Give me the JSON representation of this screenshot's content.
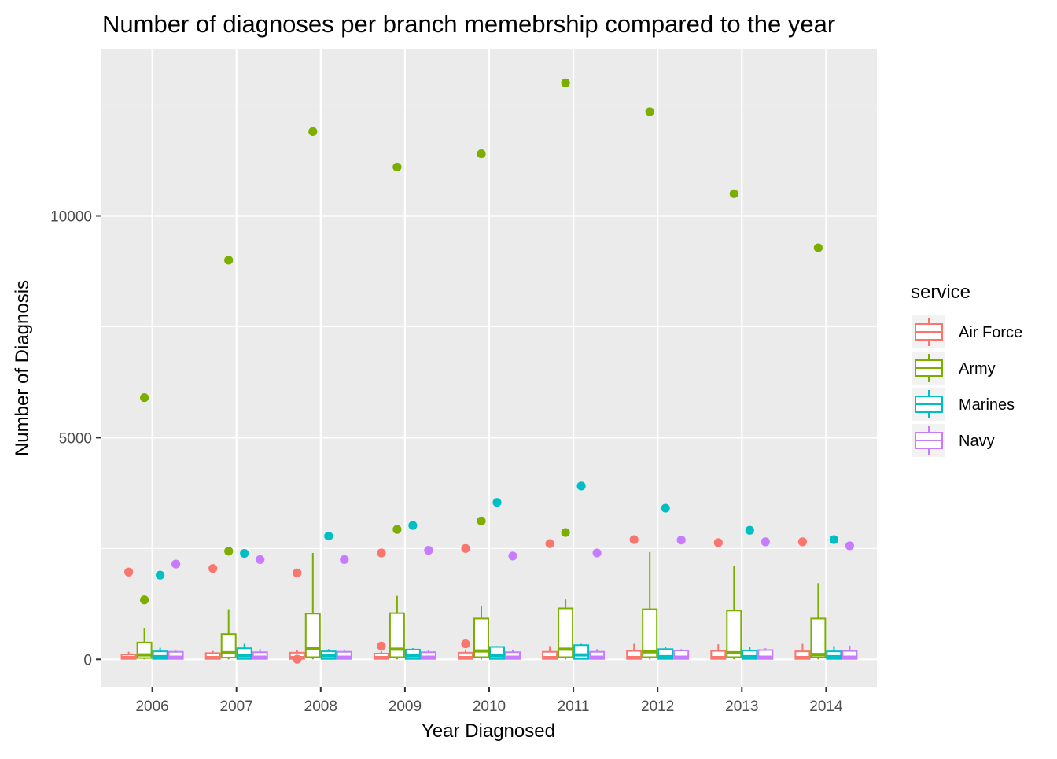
{
  "chart_data": {
    "type": "boxplot",
    "title": "Number of diagnoses per branch memebrship compared to the year",
    "xlabel": "Year Diagnosed",
    "ylabel": "Number of Diagnosis",
    "categories": [
      "2006",
      "2007",
      "2008",
      "2009",
      "2010",
      "2011",
      "2012",
      "2013",
      "2014"
    ],
    "y_ticks": [
      0,
      5000,
      10000
    ],
    "y_tick_labels": [
      "0",
      "5000",
      "10000"
    ],
    "ylim": [
      -620,
      13500
    ],
    "grid": true,
    "legend": {
      "title": "service",
      "position": "right",
      "entries": [
        "Air Force",
        "Army",
        "Marines",
        "Navy"
      ]
    },
    "colors": {
      "Air Force": "#F8766D",
      "Army": "#7CAE00",
      "Marines": "#00BFC4",
      "Navy": "#C77CFF",
      "panel_background": "#EBEBEB",
      "grid": "#FFFFFF"
    },
    "series": [
      {
        "name": "Air Force",
        "boxes": [
          {
            "min": 0,
            "q1": 10,
            "median": 40,
            "q3": 110,
            "max": 170
          },
          {
            "min": 0,
            "q1": 10,
            "median": 40,
            "q3": 140,
            "max": 190
          },
          {
            "min": 0,
            "q1": 10,
            "median": 40,
            "q3": 150,
            "max": 210
          },
          {
            "min": 0,
            "q1": 10,
            "median": 40,
            "q3": 130,
            "max": 190
          },
          {
            "min": 0,
            "q1": 10,
            "median": 40,
            "q3": 150,
            "max": 210
          },
          {
            "min": 0,
            "q1": 10,
            "median": 40,
            "q3": 170,
            "max": 300
          },
          {
            "min": 0,
            "q1": 10,
            "median": 40,
            "q3": 190,
            "max": 350
          },
          {
            "min": 0,
            "q1": 10,
            "median": 40,
            "q3": 190,
            "max": 340
          },
          {
            "min": 0,
            "q1": 10,
            "median": 40,
            "q3": 180,
            "max": 350
          }
        ],
        "outliers": [
          [
            1970
          ],
          [
            2050
          ],
          [
            1950,
            3
          ],
          [
            2400,
            300
          ],
          [
            2500,
            350
          ],
          [
            2610
          ],
          [
            2700
          ],
          [
            2630
          ],
          [
            2650
          ]
        ]
      },
      {
        "name": "Army",
        "boxes": [
          {
            "min": 0,
            "q1": 30,
            "median": 100,
            "q3": 380,
            "max": 700
          },
          {
            "min": 0,
            "q1": 40,
            "median": 150,
            "q3": 570,
            "max": 1130
          },
          {
            "min": 0,
            "q1": 50,
            "median": 250,
            "q3": 1030,
            "max": 2400
          },
          {
            "min": 0,
            "q1": 50,
            "median": 230,
            "q3": 1040,
            "max": 1430
          },
          {
            "min": 0,
            "q1": 50,
            "median": 190,
            "q3": 920,
            "max": 1200
          },
          {
            "min": 0,
            "q1": 50,
            "median": 230,
            "q3": 1150,
            "max": 1350
          },
          {
            "min": 0,
            "q1": 50,
            "median": 170,
            "q3": 1130,
            "max": 2420
          },
          {
            "min": 0,
            "q1": 50,
            "median": 150,
            "q3": 1100,
            "max": 2100
          },
          {
            "min": 0,
            "q1": 50,
            "median": 110,
            "q3": 920,
            "max": 1720
          }
        ],
        "outliers": [
          [
            5900,
            1340
          ],
          [
            9000,
            2440
          ],
          [
            11900
          ],
          [
            11100,
            2930
          ],
          [
            11400,
            3120
          ],
          [
            13000,
            2860
          ],
          [
            12350
          ],
          [
            10500
          ],
          [
            9280
          ]
        ]
      },
      {
        "name": "Marines",
        "boxes": [
          {
            "min": 0,
            "q1": 10,
            "median": 60,
            "q3": 180,
            "max": 260
          },
          {
            "min": 0,
            "q1": 10,
            "median": 80,
            "q3": 250,
            "max": 350
          },
          {
            "min": 0,
            "q1": 10,
            "median": 80,
            "q3": 180,
            "max": 230
          },
          {
            "min": 0,
            "q1": 10,
            "median": 80,
            "q3": 220,
            "max": 250
          },
          {
            "min": 0,
            "q1": 10,
            "median": 80,
            "q3": 280,
            "max": 300
          },
          {
            "min": 0,
            "q1": 10,
            "median": 100,
            "q3": 320,
            "max": 350
          },
          {
            "min": 0,
            "q1": 10,
            "median": 60,
            "q3": 230,
            "max": 280
          },
          {
            "min": 0,
            "q1": 10,
            "median": 60,
            "q3": 200,
            "max": 270
          },
          {
            "min": 0,
            "q1": 10,
            "median": 60,
            "q3": 180,
            "max": 300
          }
        ],
        "outliers": [
          [
            1900
          ],
          [
            2390
          ],
          [
            2780
          ],
          [
            3020
          ],
          [
            3540
          ],
          [
            3910
          ],
          [
            3410
          ],
          [
            2910
          ],
          [
            2700
          ]
        ]
      },
      {
        "name": "Navy",
        "boxes": [
          {
            "min": 0,
            "q1": 10,
            "median": 50,
            "q3": 170,
            "max": 200
          },
          {
            "min": 0,
            "q1": 10,
            "median": 50,
            "q3": 160,
            "max": 230
          },
          {
            "min": 0,
            "q1": 10,
            "median": 50,
            "q3": 170,
            "max": 220
          },
          {
            "min": 0,
            "q1": 10,
            "median": 50,
            "q3": 160,
            "max": 210
          },
          {
            "min": 0,
            "q1": 10,
            "median": 50,
            "q3": 160,
            "max": 220
          },
          {
            "min": 0,
            "q1": 10,
            "median": 50,
            "q3": 170,
            "max": 230
          },
          {
            "min": 0,
            "q1": 10,
            "median": 50,
            "q3": 200,
            "max": 230
          },
          {
            "min": 0,
            "q1": 10,
            "median": 50,
            "q3": 210,
            "max": 250
          },
          {
            "min": 0,
            "q1": 10,
            "median": 50,
            "q3": 190,
            "max": 310
          }
        ],
        "outliers": [
          [
            2150
          ],
          [
            2250
          ],
          [
            2250
          ],
          [
            2460
          ],
          [
            2330
          ],
          [
            2400
          ],
          [
            2690
          ],
          [
            2650
          ],
          [
            2560
          ]
        ]
      }
    ]
  }
}
